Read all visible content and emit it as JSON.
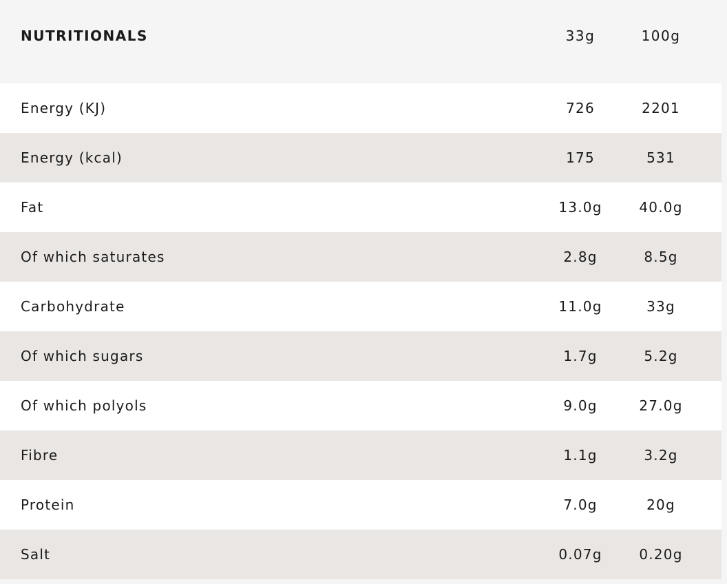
{
  "header": {
    "title": "NUTRITIONALS",
    "col1": "33g",
    "col2": "100g"
  },
  "rows": [
    {
      "name": "Energy (KJ)",
      "v1": "726",
      "v2": "2201"
    },
    {
      "name": "Energy (kcal)",
      "v1": "175",
      "v2": "531"
    },
    {
      "name": "Fat",
      "v1": "13.0g",
      "v2": "40.0g"
    },
    {
      "name": "Of which saturates",
      "v1": "2.8g",
      "v2": "8.5g"
    },
    {
      "name": "Carbohydrate",
      "v1": "11.0g",
      "v2": "33g"
    },
    {
      "name": "Of which sugars",
      "v1": "1.7g",
      "v2": "5.2g"
    },
    {
      "name": "Of which polyols",
      "v1": "9.0g",
      "v2": "27.0g"
    },
    {
      "name": "Fibre",
      "v1": "1.1g",
      "v2": "3.2g"
    },
    {
      "name": "Protein",
      "v1": "7.0g",
      "v2": "20g"
    },
    {
      "name": "Salt",
      "v1": "0.07g",
      "v2": "0.20g"
    }
  ]
}
